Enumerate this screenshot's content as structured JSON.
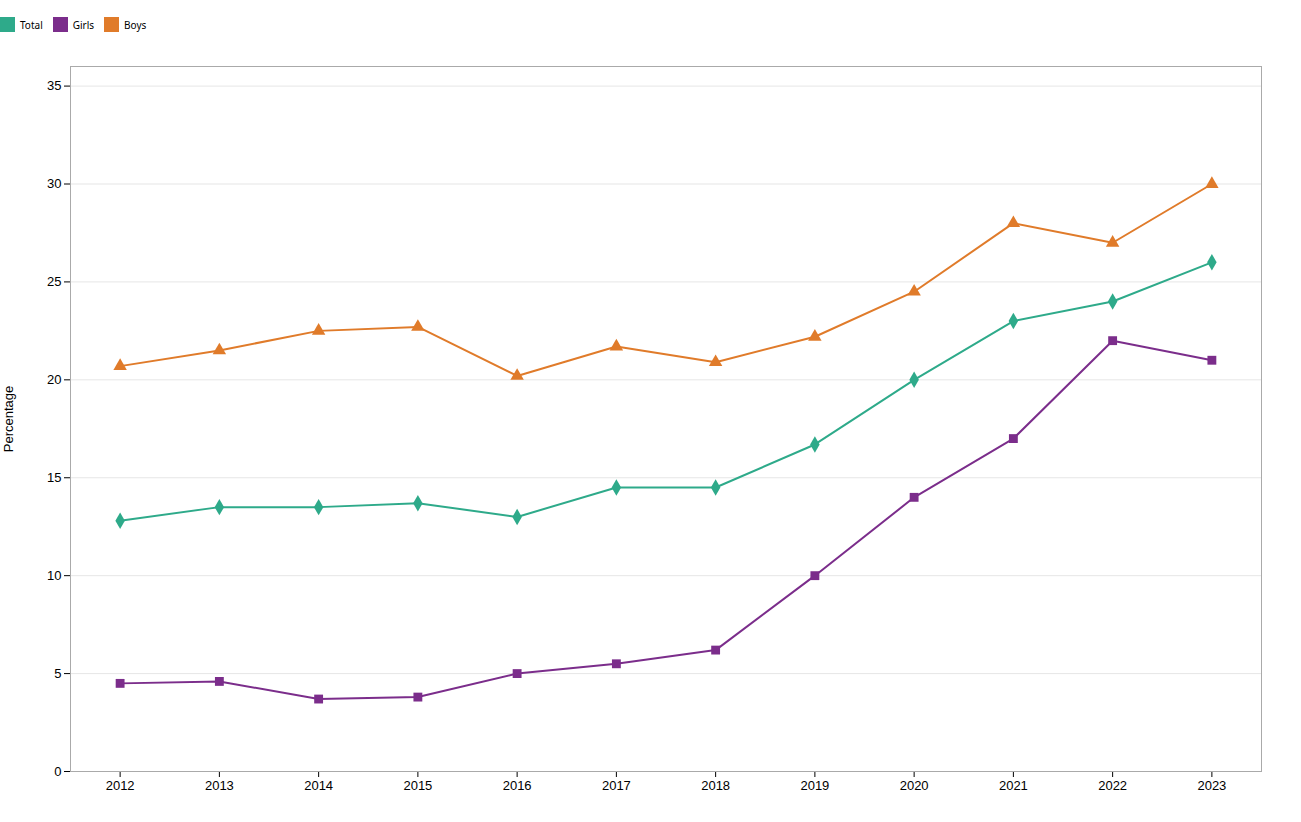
{
  "chart_data": {
    "type": "line",
    "ylabel": "Percentage",
    "x": [
      2012,
      2013,
      2014,
      2015,
      2016,
      2017,
      2018,
      2019,
      2020,
      2021,
      2022,
      2023
    ],
    "series": [
      {
        "name": "Total",
        "color": "#2eaa8a",
        "marker": "diamond",
        "values": [
          12.8,
          13.5,
          13.5,
          13.7,
          13.0,
          14.5,
          14.5,
          16.7,
          20.0,
          23.0,
          24.0,
          26.0
        ]
      },
      {
        "name": "Girls",
        "color": "#7b2d8b",
        "marker": "square",
        "values": [
          4.5,
          4.6,
          3.7,
          3.8,
          5.0,
          5.5,
          6.2,
          10.0,
          14.0,
          17.0,
          22.0,
          21.0
        ]
      },
      {
        "name": "Boys",
        "color": "#e07b2a",
        "marker": "triangle",
        "values": [
          20.7,
          21.5,
          22.5,
          22.7,
          20.2,
          21.7,
          20.9,
          22.2,
          24.5,
          28.0,
          27.0,
          30.0
        ]
      }
    ],
    "xlim": [
      2011.5,
      2023.5
    ],
    "xticks": [
      2012,
      2013,
      2014,
      2015,
      2016,
      2017,
      2018,
      2019,
      2020,
      2021,
      2022,
      2023
    ],
    "ylim": [
      0,
      36
    ],
    "yticks": [
      0,
      5,
      10,
      15,
      20,
      25,
      30,
      35
    ],
    "grid": "y",
    "legend": "top"
  }
}
